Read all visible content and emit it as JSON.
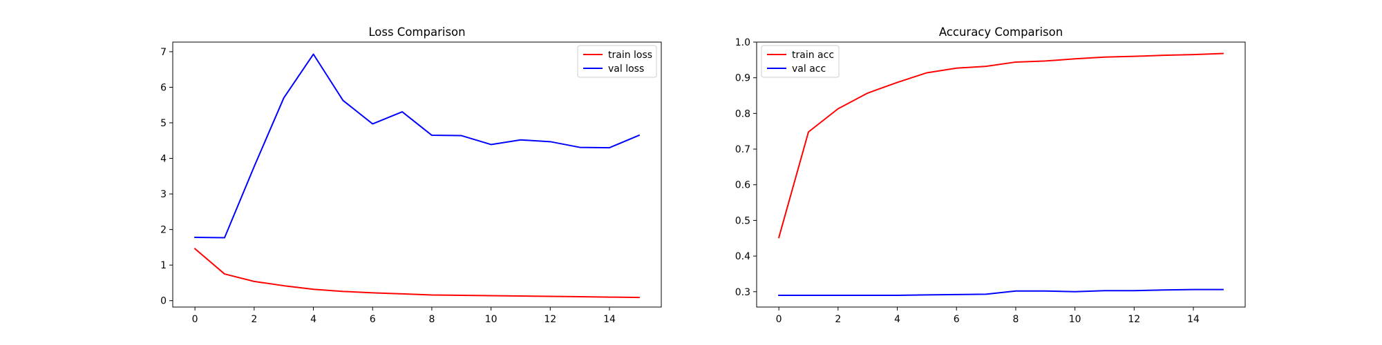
{
  "chart_data": [
    {
      "type": "line",
      "title": "Loss Comparison",
      "xlabel": "",
      "ylabel": "",
      "x": [
        0,
        1,
        2,
        3,
        4,
        5,
        6,
        7,
        8,
        9,
        10,
        11,
        12,
        13,
        14,
        15
      ],
      "xlim": [
        -0.75,
        15.75
      ],
      "ylim": [
        -0.18,
        7.27
      ],
      "xticks": [
        0,
        2,
        4,
        6,
        8,
        10,
        12,
        14
      ],
      "yticks": [
        0,
        1,
        2,
        3,
        4,
        5,
        6,
        7
      ],
      "grid": false,
      "legend_position": "upper right",
      "series": [
        {
          "name": "train loss",
          "color": "#ff0000",
          "values": [
            1.46,
            0.75,
            0.54,
            0.42,
            0.32,
            0.26,
            0.22,
            0.19,
            0.16,
            0.15,
            0.14,
            0.13,
            0.12,
            0.11,
            0.1,
            0.09
          ]
        },
        {
          "name": "val loss",
          "color": "#0000ff",
          "values": [
            1.78,
            1.77,
            3.77,
            5.7,
            6.93,
            5.63,
            4.97,
            5.31,
            4.65,
            4.64,
            4.39,
            4.52,
            4.47,
            4.31,
            4.3,
            4.65
          ]
        }
      ]
    },
    {
      "type": "line",
      "title": "Accuracy Comparison",
      "xlabel": "",
      "ylabel": "",
      "x": [
        0,
        1,
        2,
        3,
        4,
        5,
        6,
        7,
        8,
        9,
        10,
        11,
        12,
        13,
        14,
        15
      ],
      "xlim": [
        -0.75,
        15.75
      ],
      "ylim": [
        0.257,
        1.0
      ],
      "xticks": [
        0,
        2,
        4,
        6,
        8,
        10,
        12,
        14
      ],
      "yticks": [
        0.3,
        0.4,
        0.5,
        0.6,
        0.7,
        0.8,
        0.9,
        1.0
      ],
      "grid": false,
      "legend_position": "upper left",
      "series": [
        {
          "name": "train acc",
          "color": "#ff0000",
          "values": [
            0.452,
            0.748,
            0.813,
            0.857,
            0.887,
            0.914,
            0.927,
            0.932,
            0.944,
            0.947,
            0.953,
            0.958,
            0.96,
            0.963,
            0.965,
            0.968
          ]
        },
        {
          "name": "val acc",
          "color": "#0000ff",
          "values": [
            0.29,
            0.29,
            0.29,
            0.29,
            0.29,
            0.291,
            0.292,
            0.293,
            0.302,
            0.302,
            0.3,
            0.303,
            0.303,
            0.305,
            0.306,
            0.306
          ]
        }
      ]
    }
  ]
}
